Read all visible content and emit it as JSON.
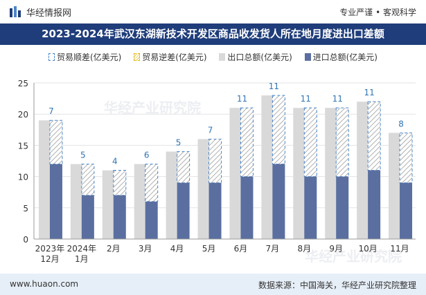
{
  "header": {
    "brand": "华经情报网",
    "tagline": "专业严谨 • 客观科学"
  },
  "title": "2023-2024年武汉东湖新技术开发区商品收发货人所在地月度进出口差额",
  "legend": {
    "surplus": "贸易顺差(亿美元)",
    "deficit": "贸易逆差(亿美元)",
    "export": "出口总额(亿美元)",
    "import": "进口总额(亿美元)"
  },
  "footer": {
    "site": "www.huaon.com",
    "source": "数据来源：中国海关，华经产业研究院整理"
  },
  "watermark": "华经产业研究院",
  "colors": {
    "export": "#d9d9d9",
    "import": "#5a6fa0",
    "surplus_border": "#4a86c8",
    "label": "#2e74b5"
  },
  "chart_data": {
    "type": "bar",
    "categories": [
      "2023年\n12月",
      "2024年\n1月",
      "2月",
      "3月",
      "4月",
      "5月",
      "6月",
      "7月",
      "8月",
      "9月",
      "10月",
      "11月"
    ],
    "series": [
      {
        "name": "出口总额(亿美元)",
        "values": [
          19,
          12,
          11,
          12,
          14,
          16,
          21,
          23,
          21,
          21,
          22,
          17
        ]
      },
      {
        "name": "进口总额(亿美元)",
        "values": [
          12,
          7,
          7,
          6,
          9,
          9,
          10,
          12,
          10,
          10,
          11,
          9
        ]
      },
      {
        "name": "贸易顺差(亿美元)",
        "values": [
          7,
          5,
          4,
          6,
          5,
          7,
          11,
          11,
          11,
          11,
          11,
          8
        ]
      },
      {
        "name": "贸易逆差(亿美元)",
        "values": [
          0,
          0,
          0,
          0,
          0,
          0,
          0,
          0,
          0,
          0,
          0,
          0
        ]
      }
    ],
    "yticks": [
      0,
      5,
      10,
      15,
      20,
      25
    ],
    "ylim": [
      0,
      25
    ],
    "grid": true,
    "legend_position": "top"
  }
}
